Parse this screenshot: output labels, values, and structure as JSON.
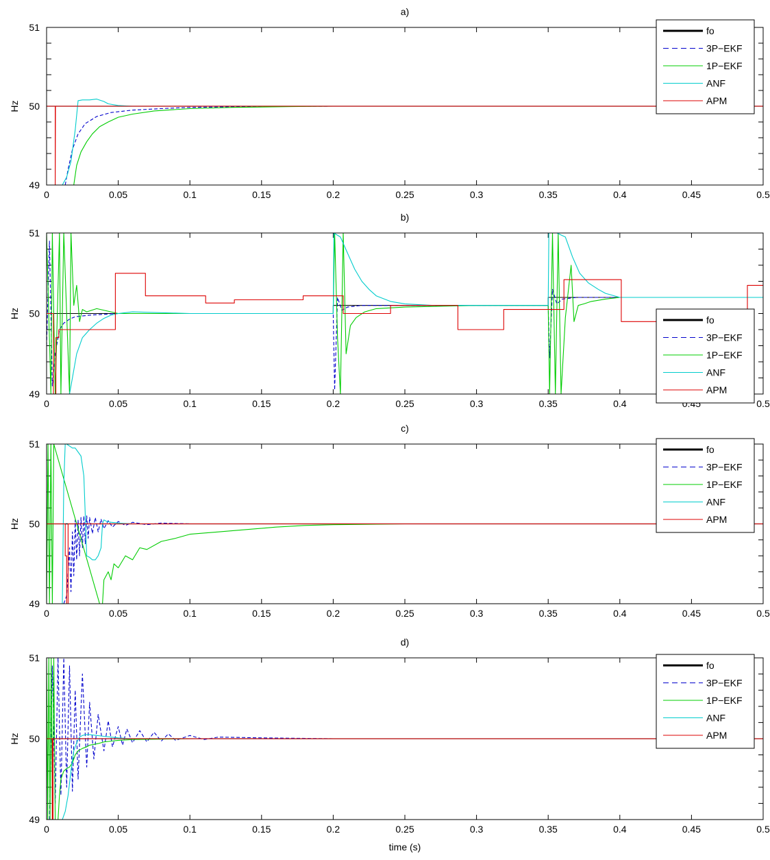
{
  "chart_data": [
    {
      "type": "line",
      "title": "a)",
      "ylabel": "Hz",
      "xlabel": "",
      "xlim": [
        0,
        0.5
      ],
      "ylim": [
        49,
        51
      ],
      "xticks": [
        "0",
        "0.05",
        "0.1",
        "0.15",
        "0.2",
        "0.25",
        "0.3",
        "0.35",
        "0.4",
        "0.45",
        "0.5"
      ],
      "yticks": [
        "49",
        "50",
        "51"
      ],
      "legend_position": "top-right",
      "grid": false,
      "series": [
        {
          "name": "fo",
          "color": "#000000",
          "style": "solid-thick",
          "x": [
            0,
            0.5
          ],
          "y": [
            50,
            50
          ]
        },
        {
          "name": "3P−EKF",
          "color": "#0000cc",
          "style": "dashed",
          "x": [
            0.013,
            0.015,
            0.018,
            0.022,
            0.027,
            0.035,
            0.045,
            0.06,
            0.08,
            0.1,
            0.15,
            0.2,
            0.5
          ],
          "y": [
            49,
            49.2,
            49.45,
            49.65,
            49.78,
            49.87,
            49.92,
            49.95,
            49.97,
            49.985,
            49.998,
            50,
            50
          ]
        },
        {
          "name": "1P−EKF",
          "color": "#00cc00",
          "style": "solid",
          "x": [
            0.019,
            0.021,
            0.024,
            0.028,
            0.032,
            0.037,
            0.043,
            0.05,
            0.06,
            0.075,
            0.1,
            0.13,
            0.17,
            0.2,
            0.5
          ],
          "y": [
            49,
            49.25,
            49.42,
            49.55,
            49.65,
            49.74,
            49.8,
            49.86,
            49.9,
            49.94,
            49.97,
            49.985,
            49.995,
            50,
            50
          ]
        },
        {
          "name": "ANF",
          "color": "#00cccc",
          "style": "solid",
          "x": [
            0.011,
            0.014,
            0.017,
            0.02,
            0.022,
            0.025,
            0.03,
            0.035,
            0.04,
            0.043,
            0.05,
            0.06,
            0.5
          ],
          "y": [
            49,
            49.1,
            49.3,
            49.7,
            50.07,
            50.08,
            50.08,
            50.09,
            50.06,
            50.03,
            50.01,
            50,
            50
          ]
        },
        {
          "name": "APM",
          "color": "#dd0000",
          "style": "solid",
          "x": [
            0.0,
            0.006,
            0.006,
            0.0062,
            0.5
          ],
          "y": [
            50,
            50,
            49,
            50,
            50
          ]
        }
      ]
    },
    {
      "type": "line",
      "title": "b)",
      "ylabel": "Hz",
      "xlabel": "",
      "xlim": [
        0,
        0.5
      ],
      "ylim": [
        49,
        51
      ],
      "xticks": [
        "0",
        "0.05",
        "0.1",
        "0.15",
        "0.2",
        "0.25",
        "0.3",
        "0.35",
        "0.4",
        "0.45",
        "0.5"
      ],
      "yticks": [
        "49",
        "50",
        "51"
      ],
      "legend_position": "bottom-right",
      "grid": false,
      "series": [
        {
          "name": "fo",
          "color": "#000000",
          "style": "solid",
          "x": [
            0,
            0.2,
            0.2,
            0.35,
            0.35,
            0.5
          ],
          "y": [
            50,
            50,
            50.1,
            50.1,
            50.2,
            50.2
          ]
        },
        {
          "name": "3P−EKF",
          "color": "#0000cc",
          "style": "dashed",
          "x": [
            0,
            0.002,
            0.004,
            0.006,
            0.009,
            0.012,
            0.016,
            0.02,
            0.03,
            0.05,
            0.1,
            0.2,
            0.201,
            0.203,
            0.206,
            0.21,
            0.22,
            0.25,
            0.35,
            0.351,
            0.353,
            0.356,
            0.36,
            0.37,
            0.4,
            0.5
          ],
          "y": [
            49.6,
            50.9,
            49.1,
            49.5,
            49.8,
            49.88,
            49.93,
            49.96,
            49.98,
            50,
            50,
            50,
            49.05,
            50.2,
            50.04,
            50.08,
            50.1,
            50.1,
            50.1,
            49.45,
            50.3,
            50.12,
            50.18,
            50.2,
            50.2,
            50.2
          ]
        },
        {
          "name": "1P−EKF",
          "color": "#00cc00",
          "style": "solid",
          "x": [
            0,
            0.003,
            0.004,
            0.006,
            0.009,
            0.01,
            0.012,
            0.016,
            0.017,
            0.019,
            0.021,
            0.023,
            0.025,
            0.028,
            0.035,
            0.05,
            0.1,
            0.2,
            0.201,
            0.203,
            0.205,
            0.207,
            0.209,
            0.212,
            0.216,
            0.222,
            0.23,
            0.25,
            0.3,
            0.35,
            0.351,
            0.353,
            0.355,
            0.357,
            0.359,
            0.362,
            0.366,
            0.368,
            0.371,
            0.375,
            0.38,
            0.39,
            0.4,
            0.5
          ],
          "y": [
            51,
            49,
            51,
            49,
            51,
            49,
            51,
            49,
            51,
            50.1,
            50.35,
            49.9,
            50.05,
            50.02,
            50.06,
            50.0,
            50,
            50,
            51,
            49.7,
            49.0,
            51,
            49.5,
            49.85,
            49.95,
            50.02,
            50.06,
            50.08,
            50.1,
            50.1,
            49.0,
            51,
            49.0,
            51,
            49.0,
            49.95,
            50.6,
            49.9,
            50.1,
            50.12,
            50.15,
            50.18,
            50.2,
            50.2
          ]
        },
        {
          "name": "ANF",
          "color": "#00cccc",
          "style": "solid",
          "x": [
            0.016,
            0.018,
            0.021,
            0.025,
            0.03,
            0.035,
            0.04,
            0.045,
            0.05,
            0.06,
            0.1,
            0.2,
            0.2005,
            0.205,
            0.21,
            0.215,
            0.22,
            0.225,
            0.23,
            0.24,
            0.25,
            0.27,
            0.3,
            0.35,
            0.3505,
            0.356,
            0.362,
            0.367,
            0.372,
            0.378,
            0.385,
            0.39,
            0.4,
            0.45,
            0.5
          ],
          "y": [
            49,
            49.2,
            49.5,
            49.7,
            49.8,
            49.88,
            49.94,
            49.98,
            50.0,
            50.02,
            50,
            50,
            51,
            50.95,
            50.75,
            50.55,
            50.4,
            50.3,
            50.22,
            50.15,
            50.12,
            50.1,
            50.1,
            50.1,
            51,
            51,
            50.95,
            50.7,
            50.5,
            50.38,
            50.3,
            50.25,
            50.2,
            50.2,
            50.2
          ]
        },
        {
          "name": "APM",
          "color": "#dd0000",
          "style": "solid",
          "x": [
            0,
            0.0048,
            0.0048,
            0.0065,
            0.0065,
            0.0085,
            0.0085,
            0.048,
            0.048,
            0.069,
            0.069,
            0.111,
            0.111,
            0.131,
            0.131,
            0.179,
            0.179,
            0.207,
            0.207,
            0.24,
            0.24,
            0.287,
            0.287,
            0.319,
            0.319,
            0.361,
            0.361,
            0.401,
            0.401,
            0.489,
            0.489,
            0.5
          ],
          "y": [
            50,
            50,
            49,
            49,
            49.7,
            49.7,
            49.8,
            49.8,
            50.5,
            50.5,
            50.22,
            50.22,
            50.13,
            50.13,
            50.17,
            50.17,
            50.22,
            50.22,
            50.0,
            50.0,
            50.1,
            50.1,
            49.8,
            49.8,
            50.05,
            50.05,
            50.42,
            50.42,
            49.9,
            49.9,
            50.35,
            50.35
          ]
        }
      ]
    },
    {
      "type": "line",
      "title": "c)",
      "ylabel": "Hz",
      "xlabel": "",
      "xlim": [
        0,
        0.5
      ],
      "ylim": [
        49,
        51
      ],
      "xticks": [
        "0",
        "0.05",
        "0.1",
        "0.15",
        "0.2",
        "0.25",
        "0.3",
        "0.35",
        "0.4",
        "0.45",
        "0.5"
      ],
      "yticks": [
        "49",
        "50",
        "51"
      ],
      "legend_position": "top-right",
      "grid": false,
      "series": [
        {
          "name": "fo",
          "color": "#000000",
          "style": "solid-thick",
          "x": [
            0,
            0.5
          ],
          "y": [
            50,
            50
          ]
        },
        {
          "name": "3P−EKF",
          "color": "#0000cc",
          "style": "dashed",
          "x": [
            0.012,
            0.014,
            0.016,
            0.017,
            0.018,
            0.019,
            0.02,
            0.021,
            0.022,
            0.023,
            0.024,
            0.025,
            0.026,
            0.027,
            0.028,
            0.029,
            0.03,
            0.032,
            0.034,
            0.036,
            0.038,
            0.04,
            0.043,
            0.046,
            0.05,
            0.055,
            0.06,
            0.07,
            0.08,
            0.1,
            0.15,
            0.5
          ],
          "y": [
            49,
            49.1,
            49.7,
            49.15,
            49.9,
            49.35,
            50.05,
            49.55,
            50.05,
            49.6,
            50.08,
            49.7,
            50.1,
            49.75,
            50.1,
            49.82,
            50.08,
            49.88,
            50.08,
            49.9,
            50.06,
            49.94,
            50.04,
            49.96,
            50.03,
            49.98,
            50.02,
            49.99,
            50.01,
            50,
            50,
            50
          ]
        },
        {
          "name": "1P−EKF",
          "color": "#00cc00",
          "style": "solid",
          "x": [
            0,
            0.001,
            0.002,
            0.003,
            0.004,
            0.005,
            0.037,
            0.039,
            0.04,
            0.043,
            0.045,
            0.047,
            0.05,
            0.055,
            0.06,
            0.065,
            0.07,
            0.08,
            0.09,
            0.1,
            0.12,
            0.14,
            0.16,
            0.18,
            0.2,
            0.25,
            0.3,
            0.5
          ],
          "y": [
            49,
            51,
            49,
            51,
            49,
            51,
            49,
            49.0,
            49.3,
            49.4,
            49.3,
            49.5,
            49.45,
            49.6,
            49.55,
            49.7,
            49.68,
            49.78,
            49.82,
            49.87,
            49.9,
            49.93,
            49.96,
            49.98,
            49.99,
            50,
            50,
            50
          ]
        },
        {
          "name": "ANF",
          "color": "#00cccc",
          "style": "solid",
          "x": [
            0.011,
            0.012,
            0.013,
            0.014,
            0.018,
            0.02,
            0.024,
            0.026,
            0.028,
            0.03,
            0.032,
            0.034,
            0.036,
            0.038,
            0.039,
            0.04,
            0.042,
            0.045,
            0.05,
            0.06,
            0.5
          ],
          "y": [
            49,
            50.5,
            51,
            51,
            50.95,
            50.95,
            50.85,
            50.6,
            49.6,
            49.58,
            49.55,
            49.55,
            49.6,
            49.7,
            50.0,
            50.05,
            50.03,
            50.02,
            50.01,
            50,
            50
          ]
        },
        {
          "name": "APM",
          "color": "#dd0000",
          "style": "solid",
          "x": [
            0,
            0.013,
            0.013,
            0.014,
            0.014,
            0.015,
            0.015,
            0.016,
            0.016,
            0.5
          ],
          "y": [
            50,
            50,
            49.6,
            49.6,
            49.0,
            49.0,
            50.0,
            50.0,
            50.0,
            50.0
          ]
        }
      ]
    },
    {
      "type": "line",
      "title": "d)",
      "ylabel": "Hz",
      "xlabel": "time (s)",
      "xlim": [
        0,
        0.5
      ],
      "ylim": [
        49,
        51
      ],
      "xticks": [
        "0",
        "0.05",
        "0.1",
        "0.15",
        "0.2",
        "0.25",
        "0.3",
        "0.35",
        "0.4",
        "0.45",
        "0.5"
      ],
      "yticks": [
        "49",
        "50",
        "51"
      ],
      "legend_position": "top-right",
      "grid": false,
      "series": [
        {
          "name": "fo",
          "color": "#000000",
          "style": "solid-thick",
          "x": [
            0,
            0.5
          ],
          "y": [
            50,
            50
          ]
        },
        {
          "name": "3P−EKF",
          "color": "#0000cc",
          "style": "dashed",
          "x": [
            0.002,
            0.004,
            0.006,
            0.008,
            0.01,
            0.012,
            0.014,
            0.016,
            0.018,
            0.02,
            0.022,
            0.025,
            0.028,
            0.03,
            0.033,
            0.036,
            0.04,
            0.043,
            0.046,
            0.05,
            0.053,
            0.056,
            0.06,
            0.065,
            0.07,
            0.075,
            0.08,
            0.085,
            0.09,
            0.1,
            0.11,
            0.12,
            0.15,
            0.2,
            0.5
          ],
          "y": [
            49,
            50.9,
            49.2,
            51,
            49.3,
            51,
            49.4,
            50.9,
            49.35,
            50.6,
            49.5,
            50.8,
            49.65,
            50.45,
            49.75,
            50.3,
            49.85,
            50.22,
            49.9,
            50.15,
            49.92,
            50.12,
            49.95,
            50.1,
            49.96,
            50.08,
            49.97,
            50.06,
            49.98,
            50.04,
            49.99,
            50.02,
            50.01,
            50,
            50
          ]
        },
        {
          "name": "1P−EKF",
          "color": "#00cc00",
          "style": "solid",
          "x": [
            0,
            0.0008,
            0.0016,
            0.0024,
            0.0032,
            0.004,
            0.005,
            0.006,
            0.008,
            0.009,
            0.01,
            0.012,
            0.014,
            0.016,
            0.018,
            0.02,
            0.022,
            0.025,
            0.028,
            0.03,
            0.033,
            0.036,
            0.04,
            0.045,
            0.05,
            0.06,
            0.1,
            0.5
          ],
          "y": [
            51,
            49,
            51,
            49,
            51,
            49,
            51,
            49,
            49.0,
            49.3,
            49.5,
            49.6,
            49.63,
            49.65,
            49.7,
            49.8,
            49.85,
            49.88,
            49.9,
            49.92,
            49.93,
            49.94,
            49.96,
            49.97,
            49.98,
            49.99,
            50,
            50
          ]
        },
        {
          "name": "ANF",
          "color": "#00cccc",
          "style": "solid",
          "x": [
            0.011,
            0.013,
            0.015,
            0.017,
            0.019,
            0.021,
            0.023,
            0.025,
            0.027,
            0.03,
            0.035,
            0.04,
            0.045,
            0.05,
            0.06,
            0.5
          ],
          "y": [
            49,
            49.1,
            49.3,
            49.6,
            49.85,
            49.95,
            50.02,
            50.04,
            50.05,
            50.05,
            50.04,
            50.03,
            50.02,
            50.01,
            50,
            50
          ]
        },
        {
          "name": "APM",
          "color": "#dd0000",
          "style": "solid",
          "x": [
            0,
            0.004,
            0.004,
            0.0045,
            0.0045,
            0.5
          ],
          "y": [
            50,
            50,
            49,
            49,
            50,
            50
          ]
        }
      ]
    }
  ]
}
